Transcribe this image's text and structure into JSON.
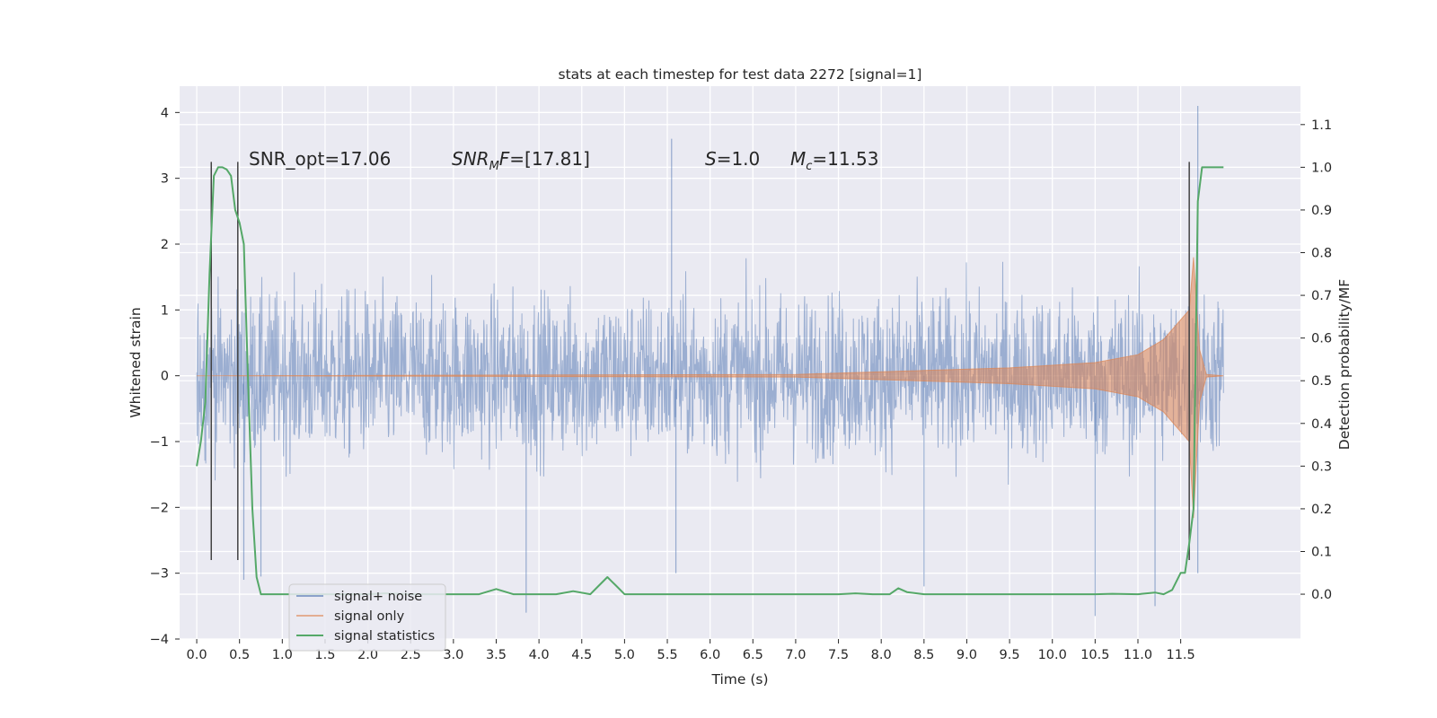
{
  "chart_data": {
    "type": "line",
    "title": "stats at each timestep for test data 2272 [signal=1]",
    "xlabel": "Time (s)",
    "ylabel": "Whitened strain",
    "ylabel_right": "Detection probability/MF",
    "xlim": [
      -0.2,
      12.9
    ],
    "ylim": [
      -4,
      4.4
    ],
    "ylim_right": [
      -0.105,
      1.19
    ],
    "x_ticks": [
      "0.0",
      "0.5",
      "1.0",
      "1.5",
      "2.0",
      "2.5",
      "3.0",
      "3.5",
      "4.0",
      "4.5",
      "5.0",
      "5.5",
      "6.0",
      "6.5",
      "7.0",
      "7.5",
      "8.0",
      "8.5",
      "9.0",
      "9.5",
      "10.0",
      "10.5",
      "11.0",
      "11.5"
    ],
    "y_ticks": [
      "−4",
      "−3",
      "−2",
      "−1",
      "0",
      "1",
      "2",
      "3",
      "4"
    ],
    "y_ticks_right": [
      "0.0",
      "0.1",
      "0.2",
      "0.3",
      "0.4",
      "0.5",
      "0.6",
      "0.7",
      "0.8",
      "0.9",
      "1.0",
      "1.1"
    ],
    "grid": true,
    "legend_position": "lower-left",
    "series": [
      {
        "name": "signal+ noise",
        "color": "#4c72b0",
        "x_range": [
          0,
          12.0
        ],
        "typical_band": [
          -1.6,
          1.5
        ],
        "extremes": [
          {
            "x": 0.55,
            "y": -3.1
          },
          {
            "x": 0.75,
            "y": -3.05
          },
          {
            "x": 3.85,
            "y": -3.6
          },
          {
            "x": 5.55,
            "y": 3.6
          },
          {
            "x": 5.6,
            "y": -3.0
          },
          {
            "x": 8.5,
            "y": -3.2
          },
          {
            "x": 10.5,
            "y": -3.65
          },
          {
            "x": 11.2,
            "y": -3.5
          },
          {
            "x": 11.7,
            "y": 4.1
          },
          {
            "x": 11.7,
            "y": -3.0
          }
        ]
      },
      {
        "name": "signal only",
        "color": "#dd8452",
        "envelope": [
          {
            "x": 0.0,
            "y": 0.0
          },
          {
            "x": 7.0,
            "y": 0.02
          },
          {
            "x": 7.5,
            "y": 0.04
          },
          {
            "x": 8.5,
            "y": 0.08
          },
          {
            "x": 9.5,
            "y": 0.12
          },
          {
            "x": 10.5,
            "y": 0.2
          },
          {
            "x": 11.0,
            "y": 0.32
          },
          {
            "x": 11.3,
            "y": 0.55
          },
          {
            "x": 11.5,
            "y": 0.85
          },
          {
            "x": 11.6,
            "y": 1.0
          },
          {
            "x": 11.65,
            "y": 1.8
          },
          {
            "x": 11.72,
            "y": 0.4
          },
          {
            "x": 11.8,
            "y": 0.02
          },
          {
            "x": 12.0,
            "y": 0.0
          }
        ]
      },
      {
        "name": "signal statistics",
        "color": "#55a868",
        "axis": "right",
        "x": [
          0.0,
          0.05,
          0.1,
          0.15,
          0.2,
          0.25,
          0.3,
          0.35,
          0.4,
          0.45,
          0.5,
          0.55,
          0.6,
          0.65,
          0.7,
          0.75,
          0.8,
          1.0,
          2.0,
          2.2,
          2.5,
          3.0,
          3.3,
          3.5,
          3.7,
          4.0,
          4.2,
          4.4,
          4.6,
          4.7,
          4.8,
          4.85,
          4.9,
          5.0,
          5.2,
          5.5,
          6.0,
          6.5,
          7.0,
          7.5,
          7.7,
          7.9,
          8.1,
          8.2,
          8.3,
          8.5,
          9.0,
          10.0,
          10.5,
          10.7,
          11.0,
          11.2,
          11.3,
          11.4,
          11.5,
          11.55,
          11.6,
          11.65,
          11.7,
          11.75,
          12.0
        ],
        "values": [
          0.3,
          0.36,
          0.45,
          0.75,
          0.98,
          1.0,
          1.0,
          0.995,
          0.98,
          0.9,
          0.87,
          0.82,
          0.5,
          0.2,
          0.04,
          0.0,
          0.0,
          0.0,
          0.0,
          0.002,
          0.0,
          0.0,
          0.0,
          0.012,
          0.0,
          0.0,
          0.0,
          0.007,
          0.0,
          0.02,
          0.04,
          0.03,
          0.02,
          0.0,
          0.0,
          0.0,
          0.0,
          0.0,
          0.0,
          0.0,
          0.002,
          0.0,
          0.0,
          0.014,
          0.005,
          0.0,
          0.0,
          0.0,
          0.0,
          0.001,
          0.0,
          0.004,
          0.0,
          0.01,
          0.05,
          0.05,
          0.12,
          0.2,
          0.92,
          1.0,
          1.0
        ]
      }
    ],
    "markers": [
      {
        "x": 0.17,
        "y_from": -2.8,
        "y_to": 3.25
      },
      {
        "x": 0.48,
        "y_from": -2.8,
        "y_to": 3.25
      },
      {
        "x": 11.6,
        "y_from": -2.8,
        "y_to": 3.25
      }
    ],
    "annotations": [
      {
        "text": "SNR_opt=17.06"
      },
      {
        "text": "SNR_MF=[17.81]"
      },
      {
        "text": "S=1.0"
      },
      {
        "text": "M_c=11.53"
      }
    ]
  }
}
